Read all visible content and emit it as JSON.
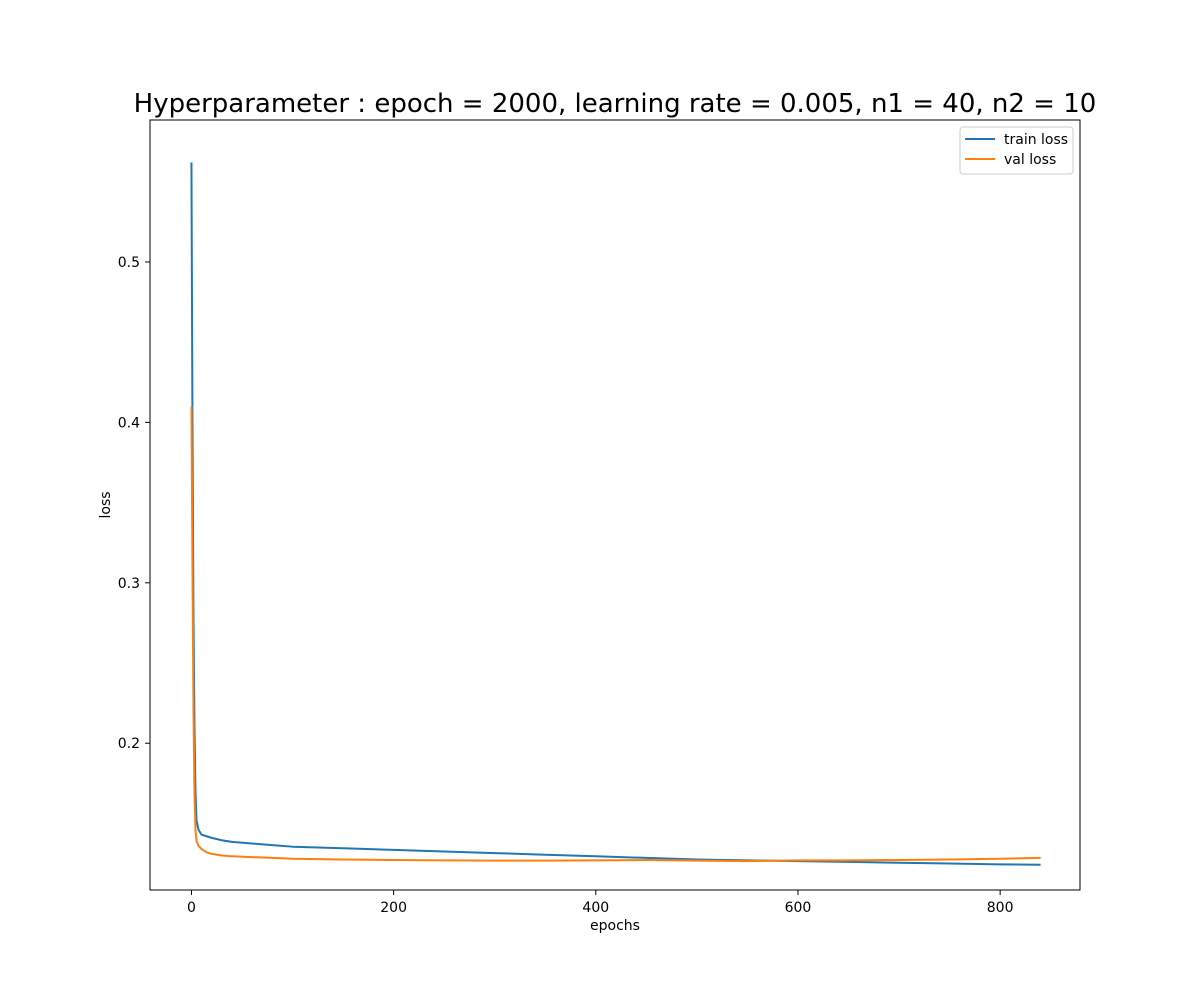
{
  "chart_data": {
    "type": "line",
    "title": "Hyperparameter : epoch = 2000, learning rate = 0.005, n1 = 40, n2 = 10",
    "xlabel": "epochs",
    "ylabel": "loss",
    "xlim": [
      -41,
      879
    ],
    "ylim": [
      0.1085,
      0.5885
    ],
    "xticks": [
      0,
      200,
      400,
      600,
      800
    ],
    "xtick_labels": [
      "0",
      "200",
      "400",
      "600",
      "800"
    ],
    "yticks": [
      0.2,
      0.3,
      0.4,
      0.5
    ],
    "ytick_labels": [
      "0.2",
      "0.3",
      "0.4",
      "0.5"
    ],
    "grid": false,
    "legend_position": "top-right",
    "series": [
      {
        "name": "train loss",
        "color": "#1f77b4",
        "x": [
          0,
          1,
          2,
          3,
          4,
          5,
          7,
          10,
          15,
          20,
          30,
          40,
          60,
          80,
          100,
          150,
          200,
          250,
          300,
          350,
          400,
          450,
          500,
          550,
          600,
          650,
          700,
          750,
          800,
          840
        ],
        "y": [
          0.562,
          0.4,
          0.28,
          0.21,
          0.17,
          0.152,
          0.146,
          0.143,
          0.142,
          0.141,
          0.1395,
          0.1385,
          0.1375,
          0.1365,
          0.1355,
          0.1345,
          0.1335,
          0.1325,
          0.1315,
          0.1305,
          0.1295,
          0.1285,
          0.1275,
          0.127,
          0.1265,
          0.126,
          0.1255,
          0.125,
          0.1245,
          0.1242
        ]
      },
      {
        "name": "val loss",
        "color": "#ff7f0e",
        "x": [
          0,
          1,
          2,
          3,
          4,
          5,
          7,
          10,
          15,
          20,
          30,
          40,
          60,
          80,
          100,
          150,
          200,
          250,
          300,
          350,
          400,
          450,
          500,
          550,
          600,
          650,
          700,
          750,
          800,
          840
        ],
        "y": [
          0.41,
          0.31,
          0.22,
          0.168,
          0.146,
          0.139,
          0.136,
          0.134,
          0.132,
          0.131,
          0.13,
          0.1295,
          0.129,
          0.1285,
          0.128,
          0.1275,
          0.1272,
          0.127,
          0.1268,
          0.1268,
          0.127,
          0.1272,
          0.1268,
          0.1265,
          0.127,
          0.127,
          0.1272,
          0.1275,
          0.128,
          0.1285
        ]
      }
    ]
  }
}
